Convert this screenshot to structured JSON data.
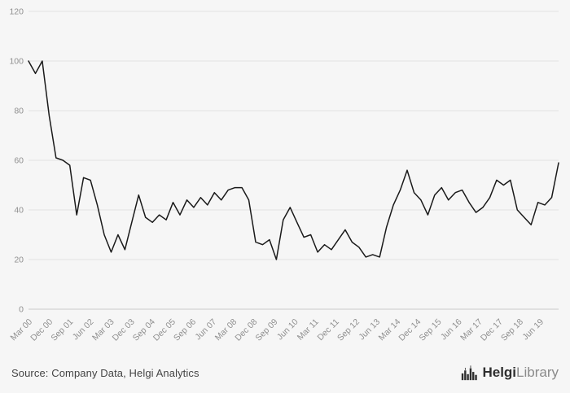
{
  "footer": {
    "source_text": "Source: Company Data, Helgi Analytics",
    "logo_primary": "Helgi",
    "logo_secondary": "Library"
  },
  "chart_data": {
    "type": "line",
    "title": "",
    "frequency": "quarterly",
    "x_start": "Mar 00",
    "x_end": "Jun 19",
    "x_tick_labels": [
      "Mar 00",
      "Dec 00",
      "Sep 01",
      "Jun 02",
      "Mar 03",
      "Dec 03",
      "Sep 04",
      "Dec 05",
      "Sep 06",
      "Jun 07",
      "Mar 08",
      "Dec 08",
      "Sep 09",
      "Jun 10",
      "Mar 11",
      "Dec 11",
      "Sep 12",
      "Jun 13",
      "Mar 14",
      "Dec 14",
      "Sep 15",
      "Jun 16",
      "Mar 17",
      "Dec 17",
      "Sep 18",
      "Jun 19"
    ],
    "values": [
      100,
      95,
      100,
      78,
      61,
      60,
      58,
      38,
      53,
      52,
      42,
      30,
      23,
      30,
      24,
      35,
      46,
      37,
      35,
      38,
      36,
      43,
      38,
      44,
      41,
      45,
      42,
      47,
      44,
      48,
      49,
      49,
      44,
      27,
      26,
      28,
      20,
      36,
      41,
      35,
      29,
      30,
      23,
      26,
      24,
      28,
      32,
      27,
      25,
      21,
      22,
      21,
      33,
      42,
      48,
      56,
      47,
      44,
      38,
      46,
      49,
      44,
      47,
      48,
      43,
      39,
      41,
      45,
      52,
      50,
      52,
      40,
      37,
      34,
      43,
      42,
      45,
      59
    ],
    "y_ticks": [
      0,
      20,
      40,
      60,
      80,
      100,
      120
    ],
    "ylim": [
      0,
      120
    ],
    "grid": "horizontal",
    "legend": "none",
    "line_color": "#1a1a1a",
    "grid_color": "#e2e2e2",
    "axis_color": "#c9c9c9",
    "tick_label_color": "#8f8f8f",
    "background": "#f6f6f6"
  }
}
